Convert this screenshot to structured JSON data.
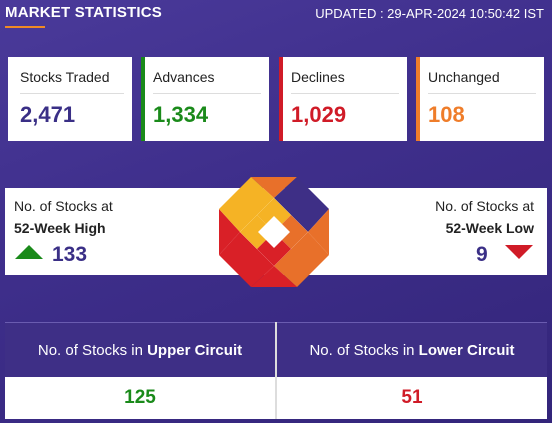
{
  "header": {
    "title": "MARKET STATISTICS",
    "updated": "UPDATED : 29-APR-2024 10:50:42 IST"
  },
  "stats": [
    {
      "label": "Stocks Traded",
      "value": "2,471",
      "color": "#3a2f86"
    },
    {
      "label": "Advances",
      "value": "1,334",
      "color": "#1a8a1a"
    },
    {
      "label": "Declines",
      "value": "1,029",
      "color": "#d01b27"
    },
    {
      "label": "Unchanged",
      "value": "108",
      "color": "#ef7d2a"
    }
  ],
  "week52": {
    "high_label_line1": "No. of Stocks at",
    "high_label_line2": "52-Week High",
    "high_value": "133",
    "low_label_line1": "No. of Stocks at",
    "low_label_line2": "52-Week Low",
    "low_value": "9"
  },
  "circuit": {
    "upper_prefix": "No. of Stocks in ",
    "upper_bold": "Upper Circuit",
    "upper_value": "125",
    "lower_prefix": "No. of Stocks in ",
    "lower_bold": "Lower Circuit",
    "lower_value": "51"
  }
}
